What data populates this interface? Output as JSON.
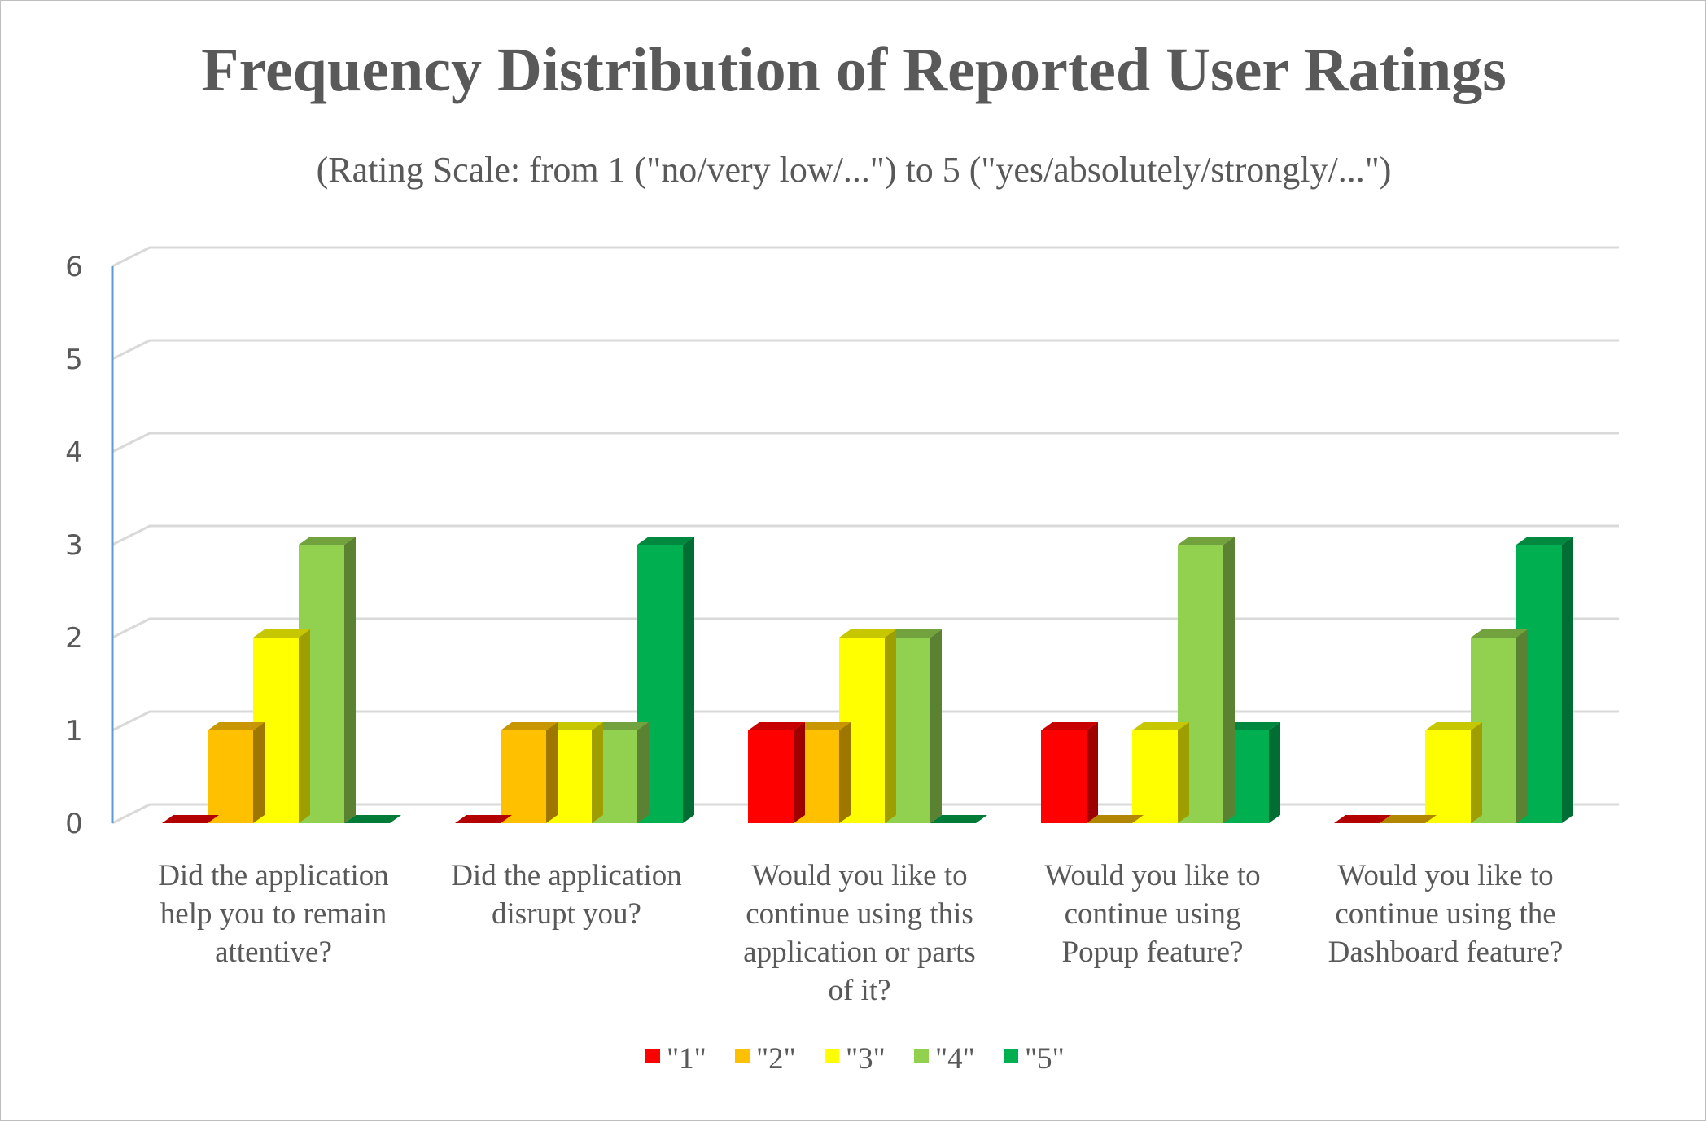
{
  "chart_data": {
    "type": "bar",
    "title": "Frequency Distribution of Reported User Ratings",
    "subtitle": "(Rating Scale: from 1 (\"no/very low/...\") to 5 (\"yes/absolutely/strongly/...\")",
    "categories": [
      [
        "Did the application",
        "help you to remain",
        "attentive?"
      ],
      [
        "Did the application",
        "disrupt you?"
      ],
      [
        "Would you like to",
        "continue using this",
        "application or parts",
        "of it?"
      ],
      [
        "Would you like to",
        "continue using",
        "Popup feature?"
      ],
      [
        "Would you like to",
        "continue using the",
        "Dashboard feature?"
      ]
    ],
    "series": [
      {
        "name": "\"1\"",
        "color": "#ff0000",
        "values": [
          0,
          0,
          1,
          1,
          0
        ]
      },
      {
        "name": "\"2\"",
        "color": "#ffc000",
        "values": [
          1,
          1,
          1,
          0,
          0
        ]
      },
      {
        "name": "\"3\"",
        "color": "#ffff00",
        "values": [
          2,
          1,
          2,
          1,
          1
        ]
      },
      {
        "name": "\"4\"",
        "color": "#92d050",
        "values": [
          3,
          1,
          2,
          3,
          2
        ]
      },
      {
        "name": "\"5\"",
        "color": "#00b050",
        "values": [
          0,
          3,
          0,
          1,
          3
        ]
      }
    ],
    "yticks": [
      0,
      1,
      2,
      3,
      4,
      5,
      6
    ],
    "ylim": [
      0,
      6
    ],
    "grid": true,
    "legend": "bottom-center",
    "style": "3d-clustered-column"
  }
}
